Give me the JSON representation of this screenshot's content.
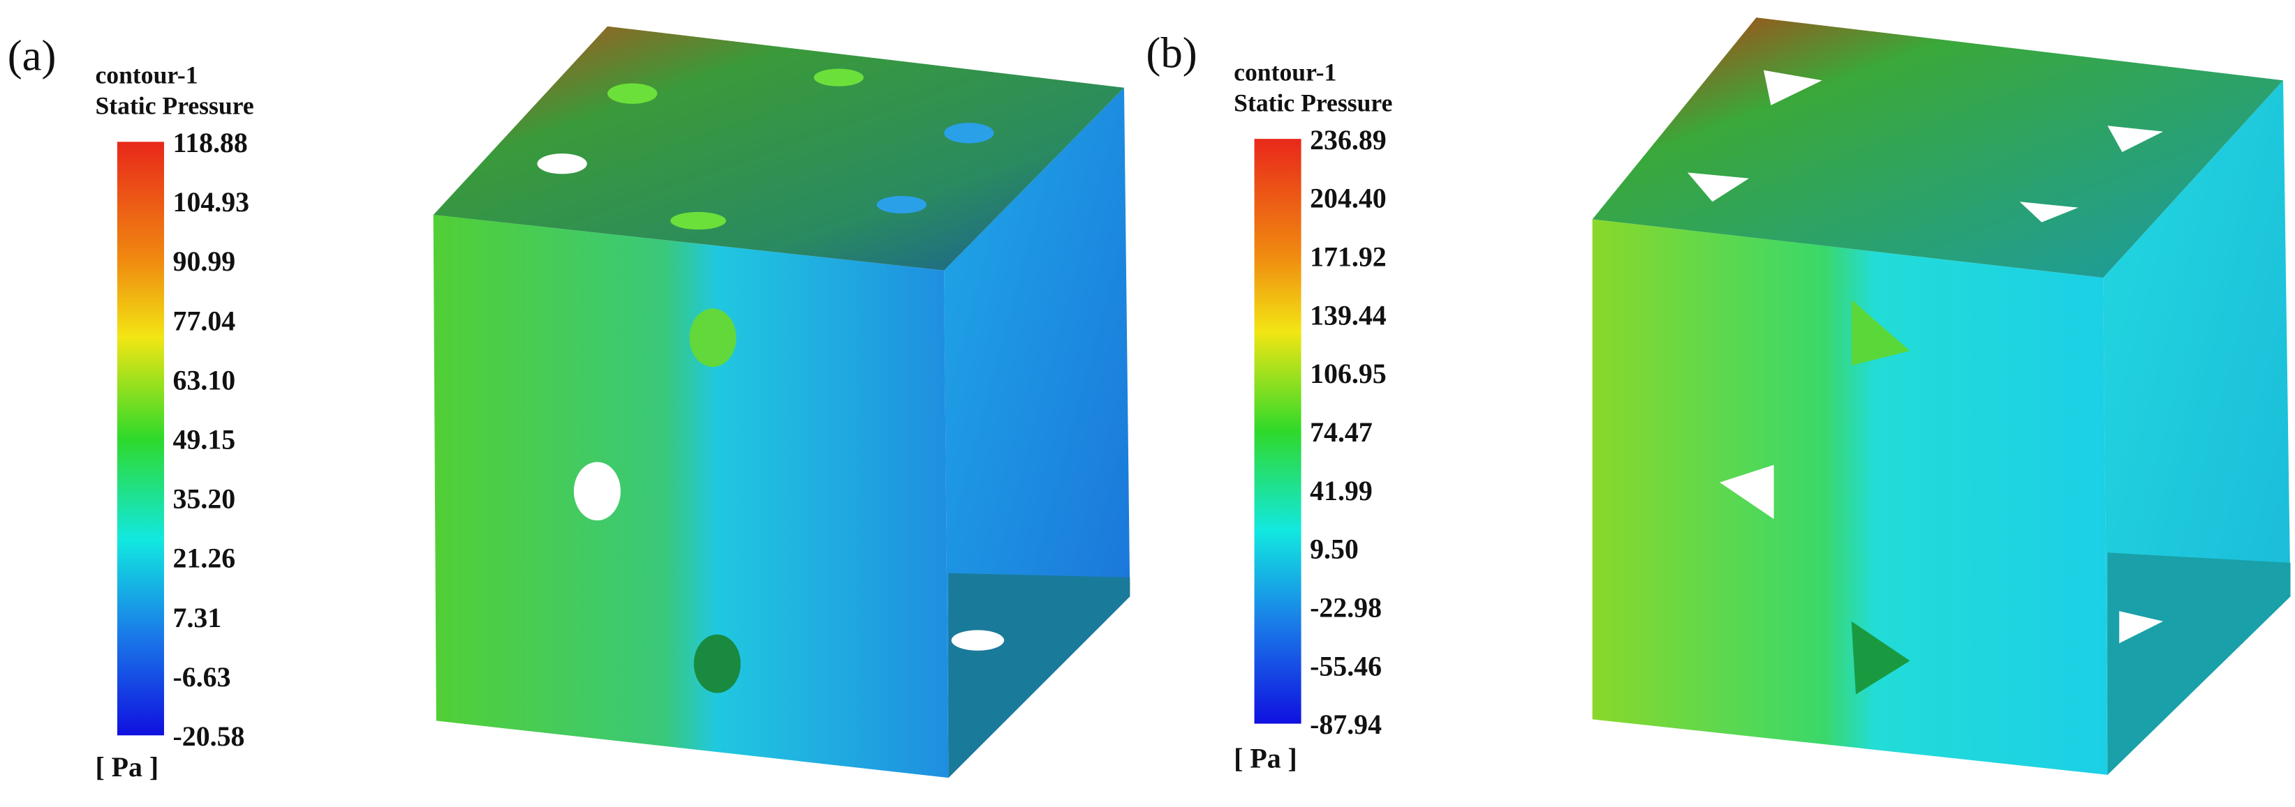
{
  "panels": [
    {
      "label": "(a)",
      "legend_title": "contour-1",
      "legend_subtitle": "Static Pressure",
      "ticks": [
        "118.88",
        "104.93",
        "90.99",
        "77.04",
        "63.10",
        "49.15",
        "35.20",
        "21.26",
        "7.31",
        "-6.63",
        "-20.58"
      ],
      "unit": "[ Pa ]"
    },
    {
      "label": "(b)",
      "legend_title": "contour-1",
      "legend_subtitle": "Static Pressure",
      "ticks": [
        "236.89",
        "204.40",
        "171.92",
        "139.44",
        "106.95",
        "74.47",
        "41.99",
        "9.50",
        "-22.98",
        "-55.46",
        "-87.94"
      ],
      "unit": "[ Pa ]"
    }
  ]
}
